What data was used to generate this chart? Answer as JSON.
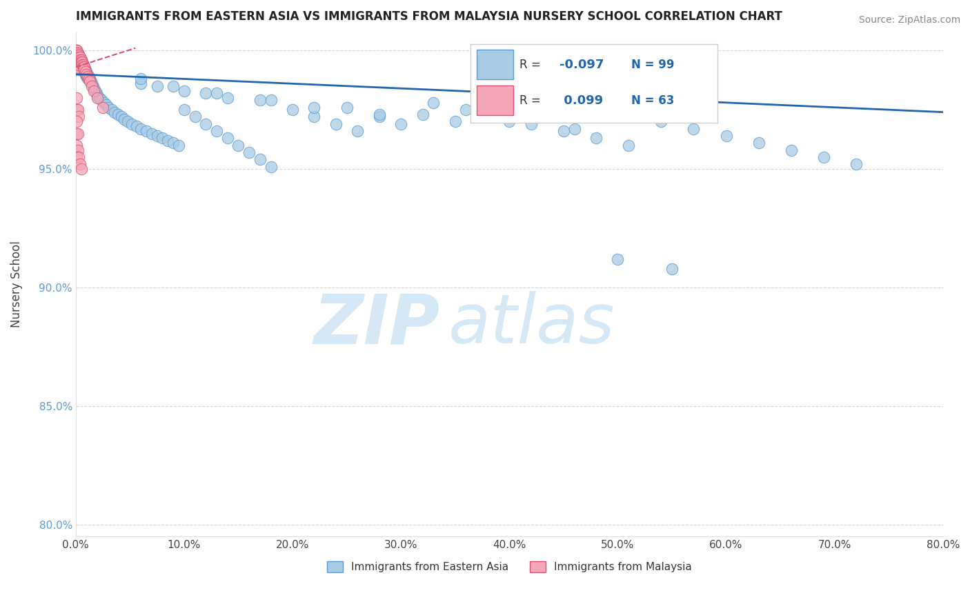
{
  "title": "IMMIGRANTS FROM EASTERN ASIA VS IMMIGRANTS FROM MALAYSIA NURSERY SCHOOL CORRELATION CHART",
  "source": "Source: ZipAtlas.com",
  "ylabel": "Nursery School",
  "legend_label1": "Immigrants from Eastern Asia",
  "legend_label2": "Immigrants from Malaysia",
  "R1": -0.097,
  "N1": 99,
  "R2": 0.099,
  "N2": 63,
  "color_blue": "#a8cce4",
  "color_pink": "#f4a7b9",
  "color_blue_edge": "#5b9bd5",
  "color_pink_edge": "#e05070",
  "color_blue_line": "#2166ac",
  "color_pink_line": "#d45070",
  "blue_x": [
    0.001,
    0.002,
    0.002,
    0.003,
    0.003,
    0.004,
    0.004,
    0.005,
    0.005,
    0.006,
    0.006,
    0.007,
    0.007,
    0.008,
    0.008,
    0.009,
    0.009,
    0.01,
    0.01,
    0.011,
    0.011,
    0.012,
    0.013,
    0.014,
    0.015,
    0.016,
    0.017,
    0.018,
    0.019,
    0.02,
    0.022,
    0.024,
    0.026,
    0.028,
    0.03,
    0.033,
    0.036,
    0.039,
    0.042,
    0.045,
    0.048,
    0.052,
    0.056,
    0.06,
    0.065,
    0.07,
    0.075,
    0.08,
    0.085,
    0.09,
    0.095,
    0.1,
    0.11,
    0.12,
    0.13,
    0.14,
    0.15,
    0.16,
    0.17,
    0.18,
    0.2,
    0.22,
    0.24,
    0.26,
    0.28,
    0.3,
    0.33,
    0.36,
    0.39,
    0.42,
    0.45,
    0.48,
    0.51,
    0.54,
    0.57,
    0.6,
    0.63,
    0.66,
    0.69,
    0.72,
    0.075,
    0.12,
    0.17,
    0.22,
    0.28,
    0.35,
    0.06,
    0.1,
    0.14,
    0.5,
    0.55,
    0.06,
    0.09,
    0.13,
    0.18,
    0.25,
    0.32,
    0.4,
    0.46
  ],
  "blue_y": [
    0.998,
    0.999,
    0.997,
    0.998,
    0.996,
    0.997,
    0.995,
    0.996,
    0.994,
    0.995,
    0.993,
    0.994,
    0.992,
    0.993,
    0.991,
    0.992,
    0.99,
    0.991,
    0.989,
    0.99,
    0.988,
    0.989,
    0.988,
    0.987,
    0.986,
    0.985,
    0.984,
    0.983,
    0.982,
    0.981,
    0.98,
    0.979,
    0.978,
    0.977,
    0.976,
    0.975,
    0.974,
    0.973,
    0.972,
    0.971,
    0.97,
    0.969,
    0.968,
    0.967,
    0.966,
    0.965,
    0.964,
    0.963,
    0.962,
    0.961,
    0.96,
    0.975,
    0.972,
    0.969,
    0.966,
    0.963,
    0.96,
    0.957,
    0.954,
    0.951,
    0.975,
    0.972,
    0.969,
    0.966,
    0.972,
    0.969,
    0.978,
    0.975,
    0.972,
    0.969,
    0.966,
    0.963,
    0.96,
    0.97,
    0.967,
    0.964,
    0.961,
    0.958,
    0.955,
    0.952,
    0.985,
    0.982,
    0.979,
    0.976,
    0.973,
    0.97,
    0.986,
    0.983,
    0.98,
    0.912,
    0.908,
    0.988,
    0.985,
    0.982,
    0.979,
    0.976,
    0.973,
    0.97,
    0.967
  ],
  "pink_x": [
    0.001,
    0.001,
    0.001,
    0.001,
    0.001,
    0.001,
    0.001,
    0.001,
    0.001,
    0.001,
    0.001,
    0.001,
    0.001,
    0.001,
    0.001,
    0.001,
    0.001,
    0.002,
    0.002,
    0.002,
    0.002,
    0.002,
    0.002,
    0.002,
    0.002,
    0.003,
    0.003,
    0.003,
    0.003,
    0.003,
    0.004,
    0.004,
    0.004,
    0.005,
    0.005,
    0.006,
    0.006,
    0.007,
    0.007,
    0.008,
    0.008,
    0.009,
    0.01,
    0.011,
    0.012,
    0.013,
    0.015,
    0.017,
    0.02,
    0.025,
    0.001,
    0.001,
    0.002,
    0.003,
    0.001,
    0.001,
    0.002,
    0.001,
    0.002,
    0.001,
    0.003,
    0.004,
    0.005
  ],
  "pink_y": [
    1.0,
    1.0,
    1.0,
    0.999,
    0.999,
    0.998,
    0.998,
    0.997,
    0.997,
    0.996,
    0.996,
    0.995,
    0.995,
    0.994,
    0.994,
    0.993,
    0.993,
    0.999,
    0.998,
    0.997,
    0.996,
    0.995,
    0.994,
    0.993,
    0.992,
    0.998,
    0.997,
    0.996,
    0.995,
    0.994,
    0.997,
    0.996,
    0.995,
    0.996,
    0.995,
    0.995,
    0.994,
    0.994,
    0.993,
    0.993,
    0.992,
    0.991,
    0.99,
    0.989,
    0.988,
    0.987,
    0.985,
    0.983,
    0.98,
    0.976,
    0.98,
    0.975,
    0.975,
    0.972,
    0.97,
    0.965,
    0.965,
    0.96,
    0.958,
    0.955,
    0.955,
    0.952,
    0.95
  ],
  "xlim": [
    0.0,
    0.8
  ],
  "ylim": [
    0.795,
    1.008
  ],
  "yticks": [
    0.8,
    0.85,
    0.9,
    0.95,
    1.0
  ],
  "ytick_labels": [
    "80.0%",
    "85.0%",
    "90.0%",
    "95.0%",
    "100.0%"
  ],
  "xticks": [
    0.0,
    0.1,
    0.2,
    0.3,
    0.4,
    0.5,
    0.6,
    0.7,
    0.8
  ],
  "xtick_labels": [
    "0.0%",
    "10.0%",
    "20.0%",
    "30.0%",
    "40.0%",
    "50.0%",
    "60.0%",
    "70.0%",
    "80.0%"
  ],
  "blue_line_x": [
    0.0,
    0.8
  ],
  "blue_line_y": [
    0.99,
    0.974
  ],
  "pink_line_x": [
    0.0,
    0.055
  ],
  "pink_line_y": [
    0.993,
    1.001
  ],
  "grid_color": "#dddddd",
  "dashed_line_y": 1.0,
  "dashed_line_color": "#cccccc",
  "watermark_color": "#d5e8f5"
}
